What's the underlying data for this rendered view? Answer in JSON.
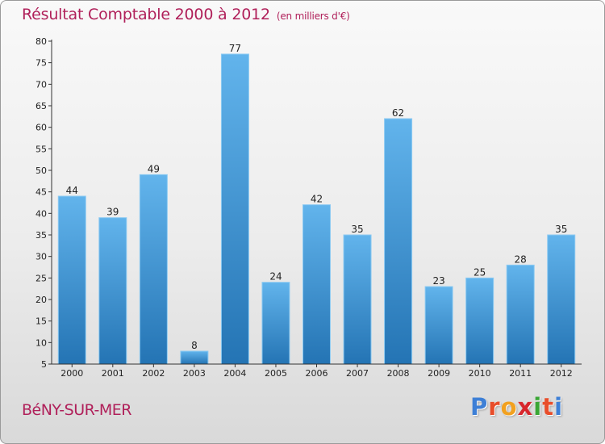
{
  "header": {
    "title": "Résultat Comptable 2000 à 2012",
    "subtitle": "(en milliers d'€)"
  },
  "footer": {
    "commune": "BéNY-SUR-MER",
    "logo_letters": [
      "P",
      "r",
      "o",
      "x",
      "i",
      "t",
      "i"
    ],
    "logo_colors": [
      "#3d7fd6",
      "#e84d2a",
      "#f2a11f",
      "#d7262c",
      "#3aa635",
      "#e84d2a",
      "#3d7fd6"
    ]
  },
  "colors": {
    "bar_top": "#62b4ec",
    "bar_bottom": "#2474b4",
    "accent": "#b0205a"
  },
  "chart_data": {
    "type": "bar",
    "title": "Résultat Comptable 2000 à 2012",
    "subtitle": "(en milliers d'€)",
    "xlabel": "",
    "ylabel": "",
    "categories": [
      "2000",
      "2001",
      "2002",
      "2003",
      "2004",
      "2005",
      "2006",
      "2007",
      "2008",
      "2009",
      "2010",
      "2011",
      "2012"
    ],
    "values": [
      44,
      39,
      49,
      8,
      77,
      24,
      42,
      35,
      62,
      23,
      25,
      28,
      35
    ],
    "ylim": [
      5,
      80
    ],
    "yticks": [
      5,
      10,
      15,
      20,
      25,
      30,
      35,
      40,
      45,
      50,
      55,
      60,
      65,
      70,
      75,
      80
    ],
    "grid": false,
    "legend": "none"
  }
}
